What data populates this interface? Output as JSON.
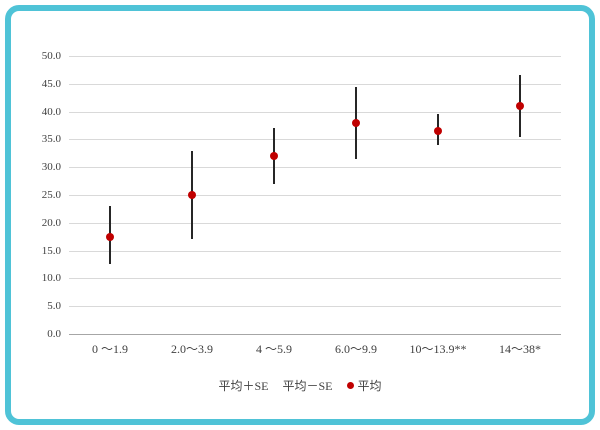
{
  "chart_data": {
    "type": "scatter",
    "title": "",
    "xlabel": "",
    "ylabel": "",
    "categories": [
      "0 ～1.9",
      "2.0～3.9",
      "4 ～5.9",
      "6.0～9.9",
      "10～13.9**",
      "14～38*"
    ],
    "series": [
      {
        "name": "平均",
        "values": [
          17.5,
          25.0,
          32.0,
          38.0,
          36.5,
          41.0
        ]
      },
      {
        "name": "平均＋SE",
        "values": [
          23.0,
          33.0,
          37.0,
          44.5,
          39.5,
          46.5
        ]
      },
      {
        "name": "平均－SE",
        "values": [
          12.5,
          17.0,
          27.0,
          31.5,
          34.0,
          35.5
        ]
      }
    ],
    "ylim": [
      0,
      50
    ],
    "yticks": [
      "0.0",
      "5.0",
      "10.0",
      "15.0",
      "20.0",
      "25.0",
      "30.0",
      "35.0",
      "40.0",
      "45.0",
      "50.0"
    ],
    "grid": true,
    "legend_position": "bottom",
    "legend": [
      {
        "label": "平均＋SE",
        "marker": "none"
      },
      {
        "label": "平均－SE",
        "marker": "none"
      },
      {
        "label": "平均",
        "marker": "dot"
      }
    ],
    "colors": {
      "mean_marker": "#c00000",
      "error_bar": "#262626",
      "gridline": "#d9d9d9",
      "axis": "#a6a6a6",
      "frame_border": "#4fc3d7"
    }
  }
}
